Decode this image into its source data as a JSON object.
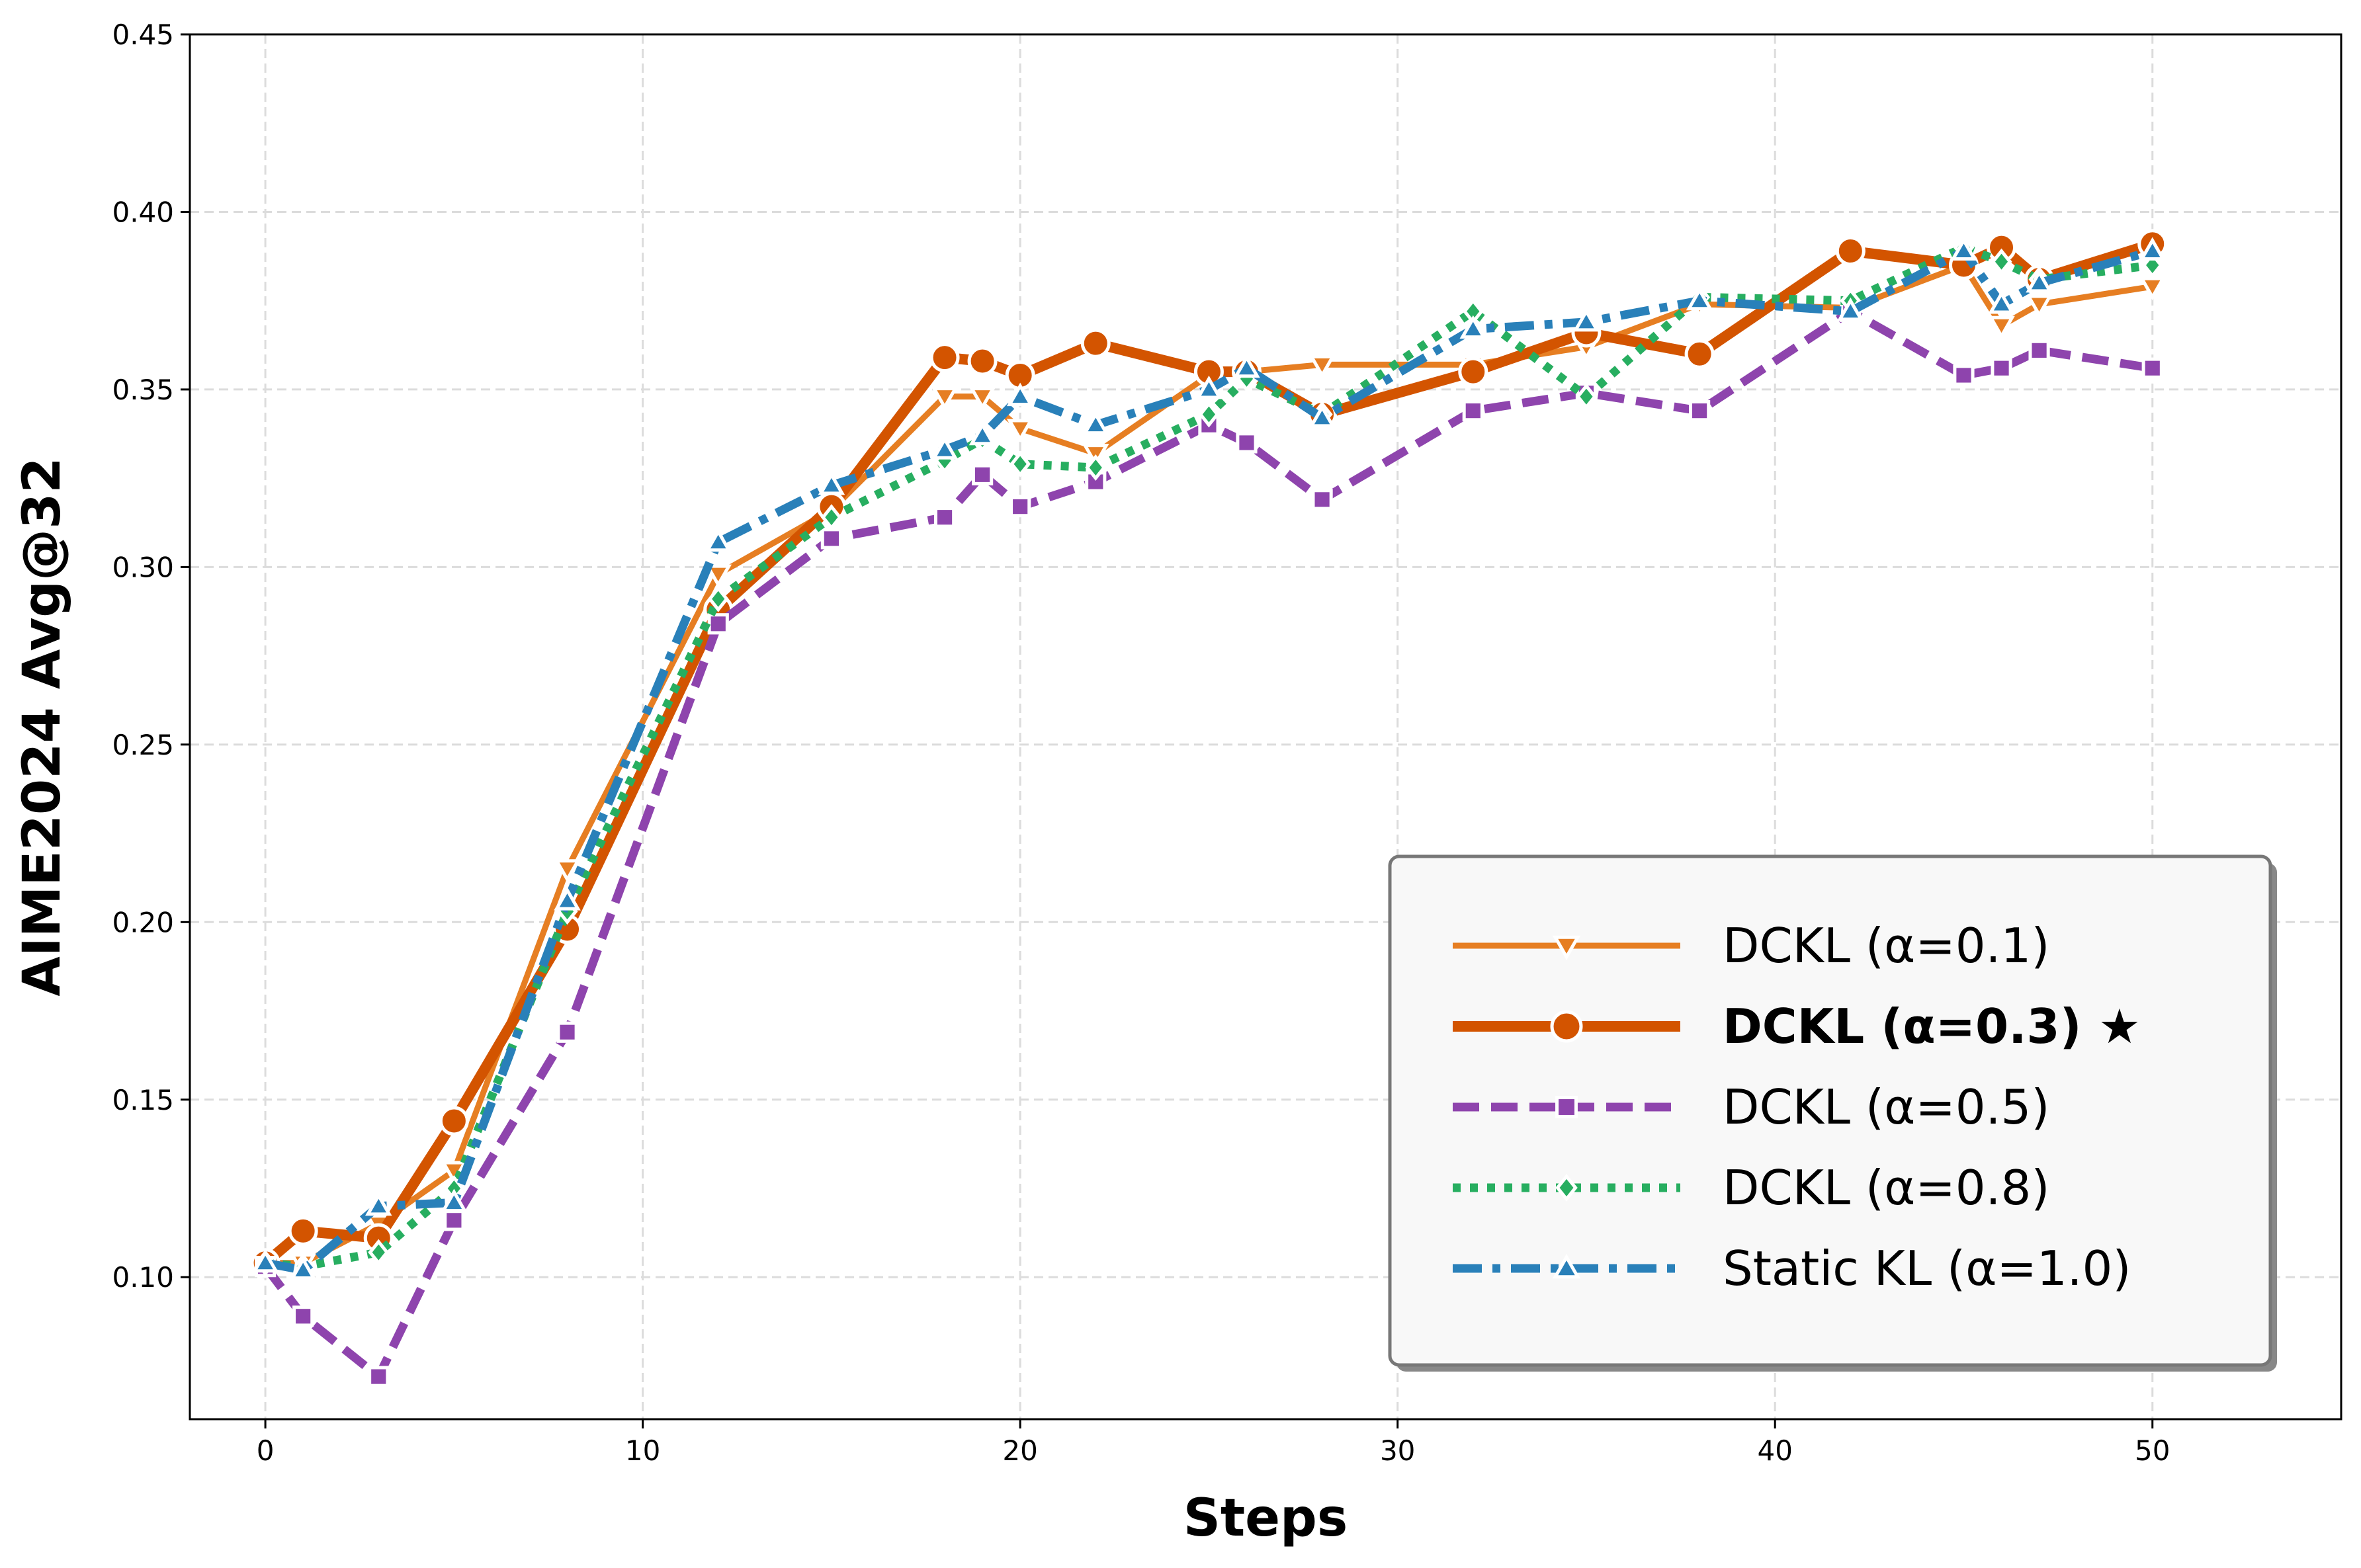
{
  "chart_data": {
    "type": "line",
    "title": "",
    "xlabel": "Steps",
    "ylabel": "AIME2024 Avg@32",
    "xlim": [
      -2,
      55
    ],
    "ylim": [
      0.06,
      0.45
    ],
    "xticks": [
      0,
      10,
      20,
      30,
      40,
      50
    ],
    "yticks": [
      0.1,
      0.15,
      0.2,
      0.25,
      0.3,
      0.35,
      0.4,
      0.45
    ],
    "xtick_labels": [
      "0",
      "10",
      "20",
      "30",
      "40",
      "50"
    ],
    "ytick_labels": [
      "0.10",
      "0.15",
      "0.20",
      "0.25",
      "0.30",
      "0.35",
      "0.40",
      "0.45"
    ],
    "grid": true,
    "legend_placement": "lower-right",
    "x": [
      0,
      1,
      3,
      5,
      8,
      12,
      15,
      18,
      19,
      20,
      22,
      25,
      26,
      28,
      32,
      35,
      38,
      42,
      45,
      46,
      47,
      50
    ],
    "series": [
      {
        "name": "DCKL (α=0.1)",
        "color": "#E67E22",
        "marker": "triangle-down",
        "linestyle": "solid",
        "bold": false,
        "values": [
          0.104,
          0.104,
          0.115,
          0.13,
          0.215,
          0.298,
          0.316,
          0.348,
          0.348,
          0.339,
          0.332,
          0.354,
          0.355,
          0.357,
          0.357,
          0.362,
          0.374,
          0.373,
          0.385,
          0.368,
          0.374,
          0.379
        ]
      },
      {
        "name": "DCKL (α=0.3) ★",
        "color": "#D35400",
        "marker": "circle",
        "linestyle": "solid",
        "bold": true,
        "values": [
          0.104,
          0.113,
          0.111,
          0.144,
          0.198,
          0.288,
          0.317,
          0.359,
          0.358,
          0.354,
          0.363,
          0.355,
          0.355,
          0.343,
          0.355,
          0.366,
          0.36,
          0.389,
          0.385,
          0.39,
          0.381,
          0.391
        ]
      },
      {
        "name": "DCKL (α=0.5)",
        "color": "#8E44AD",
        "marker": "square",
        "linestyle": "dashed",
        "bold": false,
        "values": [
          0.103,
          0.089,
          0.072,
          0.116,
          0.169,
          0.284,
          0.308,
          0.314,
          0.326,
          0.317,
          0.324,
          0.34,
          0.335,
          0.319,
          0.344,
          0.349,
          0.344,
          0.372,
          0.354,
          0.356,
          0.361,
          0.356
        ]
      },
      {
        "name": "DCKL (α=0.8)",
        "color": "#27AE60",
        "marker": "diamond",
        "linestyle": "dotted",
        "bold": false,
        "values": [
          0.104,
          0.103,
          0.107,
          0.125,
          0.203,
          0.291,
          0.314,
          0.33,
          0.336,
          0.329,
          0.328,
          0.343,
          0.353,
          0.343,
          0.372,
          0.348,
          0.376,
          0.375,
          0.39,
          0.386,
          0.381,
          0.385
        ]
      },
      {
        "name": "Static KL (α=1.0)",
        "color": "#2980B9",
        "marker": "triangle-up",
        "linestyle": "dashdot",
        "bold": false,
        "values": [
          0.104,
          0.102,
          0.12,
          0.121,
          0.206,
          0.307,
          0.323,
          0.333,
          0.337,
          0.348,
          0.34,
          0.35,
          0.356,
          0.342,
          0.367,
          0.369,
          0.375,
          0.372,
          0.389,
          0.374,
          0.38,
          0.389
        ]
      }
    ]
  }
}
